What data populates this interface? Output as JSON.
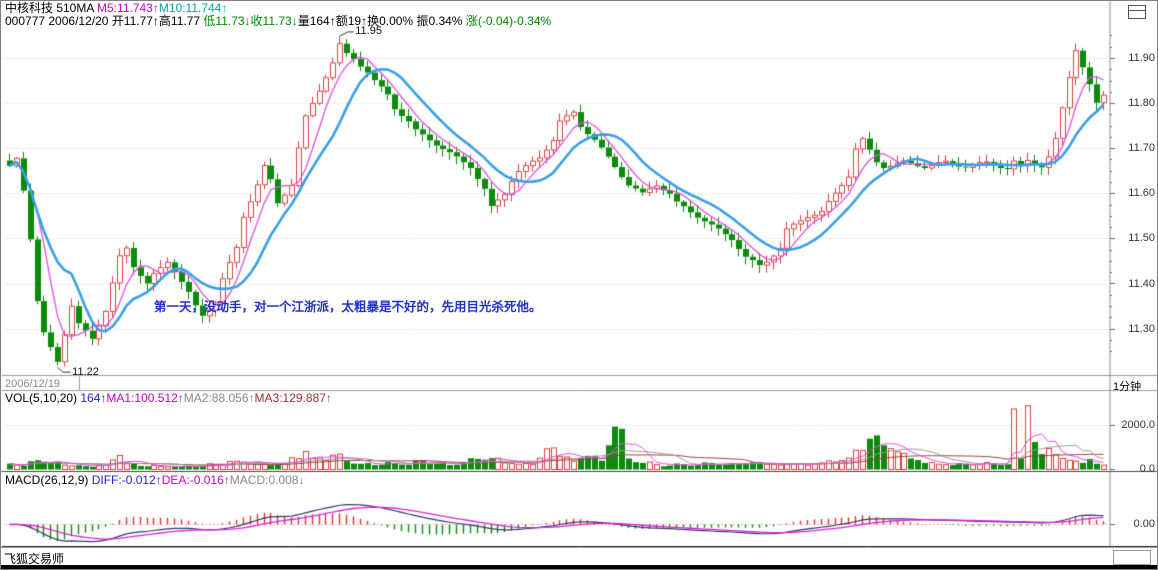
{
  "header": {
    "line1_segments": [
      {
        "text": "中核科技 510MA ",
        "color": "black"
      },
      {
        "text": "M5:11.743↑",
        "color": "magenta"
      },
      {
        "text": "M10:11.744↑",
        "color": "teal"
      }
    ],
    "line2_segments": [
      {
        "text": "000777 2006/12/20 ",
        "color": "black"
      },
      {
        "text": "开11.77↑",
        "color": "black"
      },
      {
        "text": "高11.77 ",
        "color": "black"
      },
      {
        "text": "低11.73↓",
        "color": "green"
      },
      {
        "text": "收11.73↓",
        "color": "green"
      },
      {
        "text": "量164↑",
        "color": "black"
      },
      {
        "text": "额19↑",
        "color": "black"
      },
      {
        "text": "换0.00% ",
        "color": "black"
      },
      {
        "text": "振0.34% ",
        "color": "black"
      },
      {
        "text": "涨(-0.04)-0.34%",
        "color": "green"
      }
    ]
  },
  "main_chart": {
    "y_ticks": [
      "11.90",
      "11.80",
      "11.70",
      "11.60",
      "11.50",
      "11.40",
      "11.30"
    ],
    "high_label": "11.95",
    "low_label": "11.22",
    "annotation": "第一天，没动手，对一个江浙派，太粗暴是不好的，先用目光杀死他。"
  },
  "date_row": {
    "date": "2006/12/19",
    "period": "1分钟"
  },
  "volume_pane": {
    "header_segments": [
      {
        "text": "VOL(5,10,20) ",
        "color": "black"
      },
      {
        "text": "164↑",
        "color": "blue"
      },
      {
        "text": "MA1:100.512↑",
        "color": "magenta"
      },
      {
        "text": "MA2:88.056↑",
        "color": "gray"
      },
      {
        "text": "MA3:129.887↑",
        "color": "darkred"
      }
    ],
    "y_ticks": [
      "2000.0",
      "0.0"
    ]
  },
  "macd_pane": {
    "header_segments": [
      {
        "text": "MACD(26,12,9) ",
        "color": "black"
      },
      {
        "text": "DIFF:-0.012↑",
        "color": "blue"
      },
      {
        "text": "DEA:-0.016↑",
        "color": "magenta"
      },
      {
        "text": "MACD:0.008↓",
        "color": "gray"
      }
    ],
    "y_ticks": [
      "0.00"
    ]
  },
  "status_bar": {
    "label": "飞狐交易师"
  },
  "colors": {
    "black": "#000000",
    "green": "#008800",
    "magenta": "#cc00cc",
    "teal": "#00a8a8",
    "blue": "#2222cc",
    "gray": "#888888",
    "darkred": "#993333",
    "up": "#dd4040",
    "down": "#0b8a0b",
    "ma5": "#e050e0",
    "ma10": "#3a9fe8",
    "vol_ma2": "#999999",
    "vol_ma3": "#a04040",
    "diff_line": "#333a66",
    "dea_line": "#e020e0",
    "grid": "#c4c4c4",
    "zero_line": "#d06060",
    "annotation": "#2233cc",
    "date_text": "#888888",
    "separator": "#999999",
    "axis_line": "#888888"
  },
  "chart_data": {
    "type": "candlestick",
    "title": "中核科技 000777",
    "period": "1分钟",
    "panes": [
      "price with MA5/MA10",
      "volume with MA(5,10,20)",
      "MACD(26,12,9)"
    ],
    "bars": 160,
    "y_axis": {
      "min": 11.2,
      "max": 11.97,
      "tick_step": 0.1,
      "ticks": [
        11.9,
        11.8,
        11.7,
        11.6,
        11.5,
        11.4,
        11.3
      ]
    },
    "price_high": 11.95,
    "price_low": 11.22,
    "key_points": {
      "high_bar": 48,
      "low_bar": 7
    },
    "close_waypoints": [
      [
        0,
        11.66
      ],
      [
        1,
        11.68
      ],
      [
        2,
        11.61
      ],
      [
        3,
        11.5
      ],
      [
        4,
        11.36
      ],
      [
        5,
        11.29
      ],
      [
        6,
        11.26
      ],
      [
        7,
        11.23
      ],
      [
        8,
        11.29
      ],
      [
        9,
        11.35
      ],
      [
        10,
        11.31
      ],
      [
        12,
        11.28
      ],
      [
        14,
        11.34
      ],
      [
        15,
        11.4
      ],
      [
        16,
        11.46
      ],
      [
        17,
        11.48
      ],
      [
        18,
        11.44
      ],
      [
        20,
        11.4
      ],
      [
        21,
        11.42
      ],
      [
        23,
        11.45
      ],
      [
        24,
        11.43
      ],
      [
        26,
        11.38
      ],
      [
        27,
        11.35
      ],
      [
        28,
        11.33
      ],
      [
        30,
        11.36
      ],
      [
        31,
        11.41
      ],
      [
        33,
        11.48
      ],
      [
        34,
        11.55
      ],
      [
        36,
        11.62
      ],
      [
        37,
        11.66
      ],
      [
        38,
        11.63
      ],
      [
        39,
        11.58
      ],
      [
        41,
        11.62
      ],
      [
        42,
        11.7
      ],
      [
        43,
        11.77
      ],
      [
        45,
        11.83
      ],
      [
        46,
        11.86
      ],
      [
        47,
        11.89
      ],
      [
        48,
        11.93
      ],
      [
        49,
        11.91
      ],
      [
        50,
        11.9
      ],
      [
        52,
        11.87
      ],
      [
        53,
        11.85
      ],
      [
        55,
        11.82
      ],
      [
        56,
        11.79
      ],
      [
        58,
        11.76
      ],
      [
        59,
        11.74
      ],
      [
        61,
        11.72
      ],
      [
        63,
        11.7
      ],
      [
        65,
        11.68
      ],
      [
        67,
        11.66
      ],
      [
        69,
        11.61
      ],
      [
        70,
        11.57
      ],
      [
        72,
        11.6
      ],
      [
        73,
        11.63
      ],
      [
        74,
        11.65
      ],
      [
        77,
        11.68
      ],
      [
        79,
        11.72
      ],
      [
        80,
        11.76
      ],
      [
        82,
        11.78
      ],
      [
        83,
        11.75
      ],
      [
        85,
        11.72
      ],
      [
        86,
        11.7
      ],
      [
        88,
        11.66
      ],
      [
        90,
        11.62
      ],
      [
        92,
        11.6
      ],
      [
        94,
        11.62
      ],
      [
        96,
        11.6
      ],
      [
        97,
        11.58
      ],
      [
        99,
        11.56
      ],
      [
        101,
        11.54
      ],
      [
        103,
        11.52
      ],
      [
        105,
        11.5
      ],
      [
        107,
        11.46
      ],
      [
        109,
        11.44
      ],
      [
        110,
        11.45
      ],
      [
        112,
        11.48
      ],
      [
        113,
        11.52
      ],
      [
        115,
        11.54
      ],
      [
        116,
        11.55
      ],
      [
        118,
        11.56
      ],
      [
        119,
        11.58
      ],
      [
        120,
        11.6
      ],
      [
        122,
        11.64
      ],
      [
        123,
        11.7
      ],
      [
        124,
        11.72
      ],
      [
        126,
        11.67
      ],
      [
        127,
        11.66
      ],
      [
        130,
        11.67
      ],
      [
        133,
        11.66
      ],
      [
        136,
        11.67
      ],
      [
        139,
        11.66
      ],
      [
        142,
        11.67
      ],
      [
        145,
        11.655
      ],
      [
        146,
        11.67
      ],
      [
        147,
        11.66
      ],
      [
        148,
        11.675
      ],
      [
        150,
        11.66
      ],
      [
        151,
        11.68
      ],
      [
        152,
        11.72
      ],
      [
        153,
        11.79
      ],
      [
        154,
        11.86
      ],
      [
        155,
        11.92
      ],
      [
        156,
        11.88
      ],
      [
        157,
        11.84
      ],
      [
        158,
        11.8
      ],
      [
        159,
        11.82
      ]
    ],
    "volume_axis": {
      "gridline": 2000.0,
      "min": 0.0
    },
    "volume_waypoints": [
      [
        0,
        260
      ],
      [
        2,
        180
      ],
      [
        4,
        420
      ],
      [
        6,
        300
      ],
      [
        7,
        350
      ],
      [
        9,
        160
      ],
      [
        12,
        120
      ],
      [
        14,
        200
      ],
      [
        16,
        640
      ],
      [
        17,
        300
      ],
      [
        19,
        160
      ],
      [
        22,
        140
      ],
      [
        25,
        120
      ],
      [
        28,
        180
      ],
      [
        31,
        240
      ],
      [
        33,
        380
      ],
      [
        35,
        300
      ],
      [
        38,
        200
      ],
      [
        40,
        260
      ],
      [
        43,
        820
      ],
      [
        44,
        500
      ],
      [
        46,
        420
      ],
      [
        48,
        700
      ],
      [
        49,
        380
      ],
      [
        51,
        260
      ],
      [
        53,
        200
      ],
      [
        56,
        300
      ],
      [
        58,
        220
      ],
      [
        60,
        420
      ],
      [
        62,
        260
      ],
      [
        64,
        200
      ],
      [
        66,
        320
      ],
      [
        68,
        480
      ],
      [
        70,
        520
      ],
      [
        72,
        300
      ],
      [
        74,
        240
      ],
      [
        76,
        220
      ],
      [
        79,
        980
      ],
      [
        80,
        600
      ],
      [
        82,
        380
      ],
      [
        84,
        620
      ],
      [
        86,
        400
      ],
      [
        88,
        1950
      ],
      [
        89,
        1850
      ],
      [
        90,
        500
      ],
      [
        92,
        300
      ],
      [
        94,
        220
      ],
      [
        96,
        180
      ],
      [
        98,
        240
      ],
      [
        100,
        200
      ],
      [
        102,
        300
      ],
      [
        104,
        220
      ],
      [
        106,
        260
      ],
      [
        108,
        320
      ],
      [
        110,
        240
      ],
      [
        112,
        200
      ],
      [
        114,
        260
      ],
      [
        116,
        200
      ],
      [
        118,
        300
      ],
      [
        120,
        340
      ],
      [
        122,
        520
      ],
      [
        124,
        860
      ],
      [
        125,
        1400
      ],
      [
        126,
        1550
      ],
      [
        127,
        1100
      ],
      [
        128,
        950
      ],
      [
        129,
        800
      ],
      [
        131,
        500
      ],
      [
        133,
        300
      ],
      [
        135,
        240
      ],
      [
        137,
        200
      ],
      [
        139,
        260
      ],
      [
        141,
        220
      ],
      [
        143,
        280
      ],
      [
        145,
        240
      ],
      [
        146,
        2750
      ],
      [
        147,
        500
      ],
      [
        148,
        2900
      ],
      [
        149,
        1250
      ],
      [
        150,
        700
      ],
      [
        151,
        950
      ],
      [
        152,
        680
      ],
      [
        153,
        500
      ],
      [
        154,
        420
      ],
      [
        155,
        380
      ],
      [
        156,
        300
      ],
      [
        157,
        480
      ],
      [
        158,
        260
      ],
      [
        159,
        200
      ]
    ],
    "indicators": {
      "price_ma": [
        5,
        10
      ],
      "vol_ma": [
        5,
        10,
        20
      ],
      "macd_params": [
        26,
        12,
        9
      ]
    },
    "latest": {
      "open": 11.77,
      "high": 11.77,
      "low": 11.73,
      "close": 11.73,
      "volume": 164,
      "amount": 19,
      "turnover_pct": 0.0,
      "amplitude_pct": 0.34,
      "change": -0.04,
      "change_pct": -0.34,
      "m5": 11.743,
      "m10": 11.744,
      "vol_ma1": 100.512,
      "vol_ma2": 88.056,
      "vol_ma3": 129.887,
      "diff": -0.012,
      "dea": -0.016,
      "macd": 0.008
    }
  }
}
